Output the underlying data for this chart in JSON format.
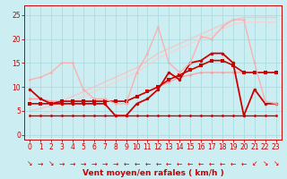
{
  "background_color": "#cceef2",
  "grid_color": "#aadddd",
  "xlabel": "Vent moyen/en rafales ( km/h )",
  "xlabel_color": "#cc0000",
  "xlabel_fontsize": 6.5,
  "tick_color": "#cc0000",
  "tick_fontsize": 5.5,
  "ylim": [
    -1,
    27
  ],
  "xlim": [
    -0.5,
    23.5
  ],
  "yticks": [
    0,
    5,
    10,
    15,
    20,
    25
  ],
  "xticks": [
    0,
    1,
    2,
    3,
    4,
    5,
    6,
    7,
    8,
    9,
    10,
    11,
    12,
    13,
    14,
    15,
    16,
    17,
    18,
    19,
    20,
    21,
    22,
    23
  ],
  "series": [
    {
      "x": [
        0,
        1,
        2,
        3,
        4,
        5,
        6,
        7,
        8,
        9,
        10,
        11,
        12,
        13,
        14,
        15,
        16,
        17,
        18,
        19,
        20,
        21,
        22,
        23
      ],
      "y": [
        4,
        4,
        4,
        4,
        4,
        4,
        4,
        4,
        4,
        4,
        4,
        4,
        4,
        4,
        4,
        4,
        4,
        4,
        4,
        4,
        4,
        4,
        4,
        4
      ],
      "color": "#cc0000",
      "lw": 1.0,
      "marker": "o",
      "ms": 2.0,
      "alpha": 1.0
    },
    {
      "x": [
        0,
        1,
        2,
        3,
        4,
        5,
        6,
        7,
        8,
        9,
        10,
        11,
        12,
        13,
        14,
        15,
        16,
        17,
        18,
        19,
        20,
        21,
        22,
        23
      ],
      "y": [
        7.5,
        7.5,
        7,
        7,
        7,
        7,
        7,
        7,
        7,
        7,
        8,
        9,
        10,
        11,
        12,
        12.5,
        13,
        13,
        13,
        13,
        13,
        13,
        13,
        13
      ],
      "color": "#ff9999",
      "lw": 1.0,
      "marker": "o",
      "ms": 2.0,
      "alpha": 0.85
    },
    {
      "x": [
        0,
        1,
        2,
        3,
        4,
        5,
        6,
        7,
        8,
        9,
        10,
        11,
        12,
        13,
        14,
        15,
        16,
        17,
        18,
        19,
        20,
        21,
        22,
        23
      ],
      "y": [
        6.5,
        6.5,
        6.5,
        7,
        7,
        7,
        7,
        7,
        7,
        7,
        8,
        9,
        10,
        11.5,
        12.5,
        13.5,
        14.5,
        15.5,
        15.5,
        14.5,
        13,
        13,
        13,
        13
      ],
      "color": "#cc0000",
      "lw": 1.2,
      "marker": "s",
      "ms": 2.5,
      "alpha": 1.0
    },
    {
      "x": [
        0,
        1,
        2,
        3,
        4,
        5,
        6,
        7,
        8,
        9,
        10,
        11,
        12,
        13,
        14,
        15,
        16,
        17,
        18,
        19,
        20,
        21,
        22,
        23
      ],
      "y": [
        9.5,
        7.5,
        6.5,
        6.5,
        6.5,
        6.5,
        6.5,
        6.5,
        4,
        4,
        6.5,
        7.5,
        9.5,
        13,
        11.5,
        15,
        15.5,
        17,
        17,
        15,
        4,
        9.5,
        6.5,
        6.5
      ],
      "color": "#cc0000",
      "lw": 1.3,
      "marker": "o",
      "ms": 2.5,
      "alpha": 1.0
    },
    {
      "x": [
        0,
        1,
        2,
        3,
        4,
        5,
        6,
        7,
        8,
        9,
        10,
        11,
        12,
        13,
        14,
        15,
        16,
        17,
        18,
        19,
        20,
        21,
        22,
        23
      ],
      "y": [
        11.5,
        12,
        13,
        15,
        15,
        9.5,
        7.5,
        7.5,
        6.5,
        6.5,
        13,
        17,
        22.5,
        15,
        13,
        15,
        20.5,
        20,
        22.5,
        24,
        24,
        15,
        7,
        6.5
      ],
      "color": "#ffaaaa",
      "lw": 1.0,
      "marker": "o",
      "ms": 2.0,
      "alpha": 0.9
    },
    {
      "x": [
        0,
        1,
        2,
        3,
        4,
        5,
        6,
        7,
        8,
        9,
        10,
        11,
        12,
        13,
        14,
        15,
        16,
        17,
        18,
        19,
        20,
        21,
        22,
        23
      ],
      "y": [
        5,
        5.5,
        6,
        7,
        8,
        9,
        10,
        11,
        12,
        13,
        14,
        15.5,
        17,
        18,
        19,
        20,
        21,
        22,
        23,
        24,
        24.5,
        24.5,
        24.5,
        24.5
      ],
      "color": "#ffbbbb",
      "lw": 1.0,
      "marker": null,
      "ms": 0,
      "alpha": 0.75
    },
    {
      "x": [
        0,
        1,
        2,
        3,
        4,
        5,
        6,
        7,
        8,
        9,
        10,
        11,
        12,
        13,
        14,
        15,
        16,
        17,
        18,
        19,
        20,
        21,
        22,
        23
      ],
      "y": [
        3.5,
        4,
        5,
        6,
        7,
        8,
        9,
        10,
        11,
        12,
        13,
        14.5,
        16,
        17,
        18,
        19,
        20,
        21,
        22,
        23,
        23.5,
        23.5,
        23.5,
        23.5
      ],
      "color": "#ffcccc",
      "lw": 1.0,
      "marker": null,
      "ms": 0,
      "alpha": 0.75
    }
  ],
  "arrow_dirs": [
    "down-right",
    "right",
    "down-right",
    "right",
    "right",
    "right",
    "right",
    "right",
    "right",
    "left",
    "left",
    "left",
    "left",
    "left",
    "left",
    "left",
    "left",
    "left",
    "left",
    "left",
    "left",
    "down-left",
    "down-right",
    "down-right"
  ],
  "arrow_color": "#cc0000"
}
